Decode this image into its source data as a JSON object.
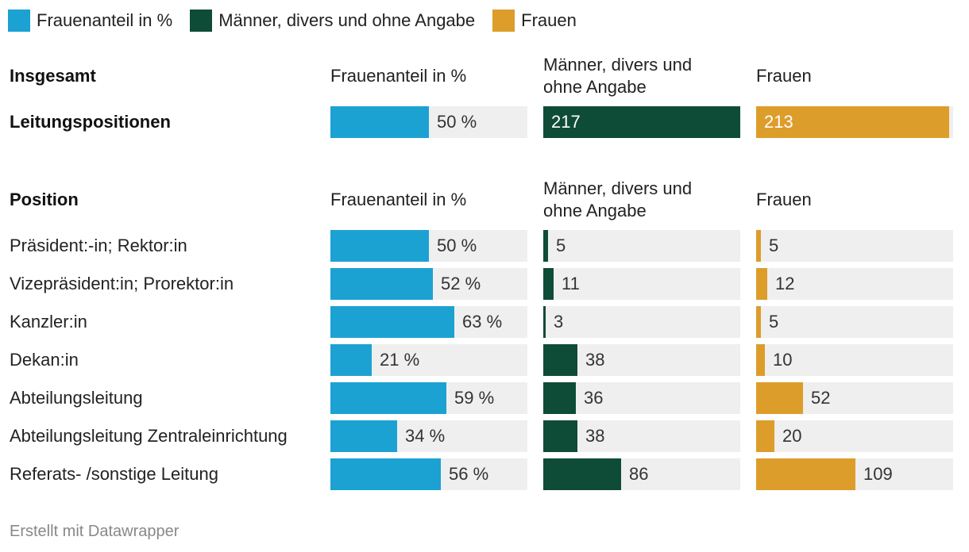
{
  "chart_data": {
    "type": "table",
    "legend": [
      {
        "label": "Frauenanteil in %",
        "color": "#1ba2d2"
      },
      {
        "label": "Männer, divers und ohne Angabe",
        "color": "#0f4c38"
      },
      {
        "label": "Frauen",
        "color": "#dd9d2b"
      }
    ],
    "columns": {
      "share": {
        "header": "Frauenanteil in %",
        "max": 100,
        "color": "#1ba2d2"
      },
      "men": {
        "header": "Männer, divers und ohne Angabe",
        "max": 217,
        "color": "#0f4c38"
      },
      "women": {
        "header": "Frauen",
        "max": 217,
        "color": "#dd9d2b"
      }
    },
    "total_section": {
      "heading": "Insgesamt",
      "rows": [
        {
          "label": "Leitungspositionen",
          "share": 50,
          "share_label": "50 %",
          "men": 217,
          "men_label": "217",
          "women": 213,
          "women_label": "213",
          "bold": true
        }
      ]
    },
    "position_section": {
      "heading": "Position",
      "rows": [
        {
          "label": "Präsident:-in; Rektor:in",
          "share": 50,
          "share_label": "50 %",
          "men": 5,
          "men_label": "5",
          "women": 5,
          "women_label": "5"
        },
        {
          "label": "Vizepräsident:in; Prorektor:in",
          "share": 52,
          "share_label": "52 %",
          "men": 11,
          "men_label": "11",
          "women": 12,
          "women_label": "12"
        },
        {
          "label": "Kanzler:in",
          "share": 63,
          "share_label": "63 %",
          "men": 3,
          "men_label": "3",
          "women": 5,
          "women_label": "5"
        },
        {
          "label": "Dekan:in",
          "share": 21,
          "share_label": "21 %",
          "men": 38,
          "men_label": "38",
          "women": 10,
          "women_label": "10"
        },
        {
          "label": "Abteilungsleitung",
          "share": 59,
          "share_label": "59 %",
          "men": 36,
          "men_label": "36",
          "women": 52,
          "women_label": "52"
        },
        {
          "label": "Abteilungsleitung Zentraleinrichtung",
          "share": 34,
          "share_label": "34 %",
          "men": 38,
          "men_label": "38",
          "women": 20,
          "women_label": "20"
        },
        {
          "label": "Referats- /sonstige Leitung",
          "share": 56,
          "share_label": "56 %",
          "men": 86,
          "men_label": "86",
          "women": 109,
          "women_label": "109"
        }
      ]
    }
  },
  "footer": "Erstellt mit Datawrapper"
}
